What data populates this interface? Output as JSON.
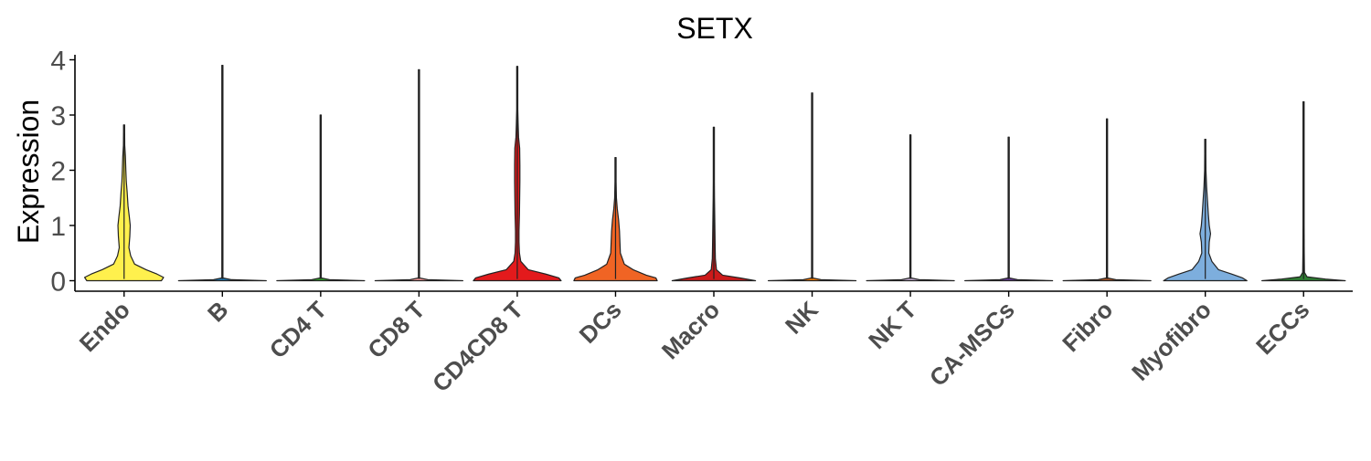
{
  "chart_data": {
    "type": "violin",
    "title": "SETX",
    "xlabel": "",
    "ylabel": "Expression",
    "ylim": [
      -0.2,
      4.1
    ],
    "yticks": [
      0,
      1,
      2,
      3,
      4
    ],
    "ytick_labels": [
      "0",
      "1",
      "2",
      "3",
      "4"
    ],
    "grid": false,
    "legend": "none",
    "categories": [
      "Endo",
      "B",
      "CD4 T",
      "CD8 T",
      "CD4CD8 T",
      "DCs",
      "Macro",
      "NK",
      "NK T",
      "CA-MSCs",
      "Fibro",
      "Myofibro",
      "ECCs"
    ],
    "series": [
      {
        "category": "Endo",
        "max": 2.82,
        "color": "#FFF04D",
        "density": [
          [
            0,
            0.85
          ],
          [
            0.06,
            0.9
          ],
          [
            0.12,
            0.75
          ],
          [
            0.2,
            0.5
          ],
          [
            0.3,
            0.24
          ],
          [
            0.45,
            0.15
          ],
          [
            0.6,
            0.11
          ],
          [
            0.8,
            0.13
          ],
          [
            1.0,
            0.14
          ],
          [
            1.15,
            0.12
          ],
          [
            1.35,
            0.09
          ],
          [
            1.6,
            0.07
          ],
          [
            1.8,
            0.05
          ],
          [
            2.0,
            0.04
          ],
          [
            2.25,
            0.03
          ],
          [
            2.45,
            0.015
          ],
          [
            2.7,
            0.008
          ],
          [
            2.82,
            0
          ]
        ]
      },
      {
        "category": "B",
        "max": 3.9,
        "color": "#1F78B4",
        "density": [
          [
            0,
            1.0
          ],
          [
            0.02,
            0.2
          ],
          [
            0.05,
            0.0
          ],
          [
            3.9,
            0
          ]
        ]
      },
      {
        "category": "CD4 T",
        "max": 3.0,
        "color": "#33A02C",
        "density": [
          [
            0,
            1.0
          ],
          [
            0.02,
            0.2
          ],
          [
            0.05,
            0.0
          ],
          [
            3.0,
            0
          ]
        ]
      },
      {
        "category": "CD8 T",
        "max": 3.82,
        "color": "#FB9A99",
        "density": [
          [
            0,
            1.0
          ],
          [
            0.02,
            0.2
          ],
          [
            0.05,
            0.0
          ],
          [
            3.82,
            0
          ]
        ]
      },
      {
        "category": "CD4CD8 T",
        "max": 3.88,
        "color": "#E31A1C",
        "density": [
          [
            0,
            1.0
          ],
          [
            0.05,
            0.95
          ],
          [
            0.12,
            0.65
          ],
          [
            0.2,
            0.25
          ],
          [
            0.35,
            0.08
          ],
          [
            0.5,
            0.05
          ],
          [
            0.7,
            0.04
          ],
          [
            0.9,
            0.04
          ],
          [
            1.2,
            0.05
          ],
          [
            1.5,
            0.055
          ],
          [
            1.8,
            0.06
          ],
          [
            2.1,
            0.06
          ],
          [
            2.4,
            0.055
          ],
          [
            2.6,
            0.03
          ],
          [
            2.85,
            0.02
          ],
          [
            3.1,
            0.008
          ],
          [
            3.88,
            0
          ]
        ]
      },
      {
        "category": "DCs",
        "max": 2.23,
        "color": "#F06424",
        "density": [
          [
            0,
            0.95
          ],
          [
            0.05,
            0.92
          ],
          [
            0.1,
            0.7
          ],
          [
            0.2,
            0.4
          ],
          [
            0.3,
            0.2
          ],
          [
            0.5,
            0.11
          ],
          [
            0.7,
            0.1
          ],
          [
            0.9,
            0.09
          ],
          [
            1.1,
            0.07
          ],
          [
            1.3,
            0.04
          ],
          [
            1.5,
            0.02
          ],
          [
            1.8,
            0.01
          ],
          [
            2.23,
            0
          ]
        ]
      },
      {
        "category": "Macro",
        "max": 2.78,
        "color": "#CC1A1A",
        "density": [
          [
            0,
            0.95
          ],
          [
            0.05,
            0.6
          ],
          [
            0.1,
            0.2
          ],
          [
            0.2,
            0.06
          ],
          [
            0.4,
            0.035
          ],
          [
            0.6,
            0.03
          ],
          [
            0.9,
            0.025
          ],
          [
            1.2,
            0.02
          ],
          [
            1.5,
            0.015
          ],
          [
            1.8,
            0.01
          ],
          [
            2.2,
            0.005
          ],
          [
            2.78,
            0
          ]
        ]
      },
      {
        "category": "NK",
        "max": 3.4,
        "color": "#FF7F00",
        "density": [
          [
            0,
            1.0
          ],
          [
            0.02,
            0.2
          ],
          [
            0.05,
            0.0
          ],
          [
            3.4,
            0
          ]
        ]
      },
      {
        "category": "NK T",
        "max": 2.64,
        "color": "#CAB2D6",
        "density": [
          [
            0,
            1.0
          ],
          [
            0.02,
            0.2
          ],
          [
            0.05,
            0.0
          ],
          [
            2.64,
            0
          ]
        ]
      },
      {
        "category": "CA-MSCs",
        "max": 2.6,
        "color": "#6A3D9A",
        "density": [
          [
            0,
            1.0
          ],
          [
            0.02,
            0.2
          ],
          [
            0.05,
            0.0
          ],
          [
            2.6,
            0
          ]
        ]
      },
      {
        "category": "Fibro",
        "max": 2.93,
        "color": "#B15928",
        "density": [
          [
            0,
            1.0
          ],
          [
            0.02,
            0.2
          ],
          [
            0.05,
            0.0
          ],
          [
            2.93,
            0
          ]
        ]
      },
      {
        "category": "Myofibro",
        "max": 2.56,
        "color": "#7DAEDD",
        "density": [
          [
            0,
            0.95
          ],
          [
            0.05,
            0.85
          ],
          [
            0.12,
            0.6
          ],
          [
            0.2,
            0.3
          ],
          [
            0.35,
            0.15
          ],
          [
            0.5,
            0.08
          ],
          [
            0.7,
            0.09
          ],
          [
            0.85,
            0.12
          ],
          [
            1.0,
            0.09
          ],
          [
            1.2,
            0.07
          ],
          [
            1.45,
            0.05
          ],
          [
            1.7,
            0.03
          ],
          [
            2.0,
            0.015
          ],
          [
            2.3,
            0.006
          ],
          [
            2.56,
            0
          ]
        ]
      },
      {
        "category": "ECCs",
        "max": 3.24,
        "color": "#2E7D32",
        "density": [
          [
            0,
            0.95
          ],
          [
            0.03,
            0.5
          ],
          [
            0.07,
            0.08
          ],
          [
            0.15,
            0.02
          ],
          [
            0.5,
            0.015
          ],
          [
            1.0,
            0.01
          ],
          [
            1.5,
            0.006
          ],
          [
            2.0,
            0.004
          ],
          [
            3.24,
            0
          ]
        ]
      }
    ]
  }
}
